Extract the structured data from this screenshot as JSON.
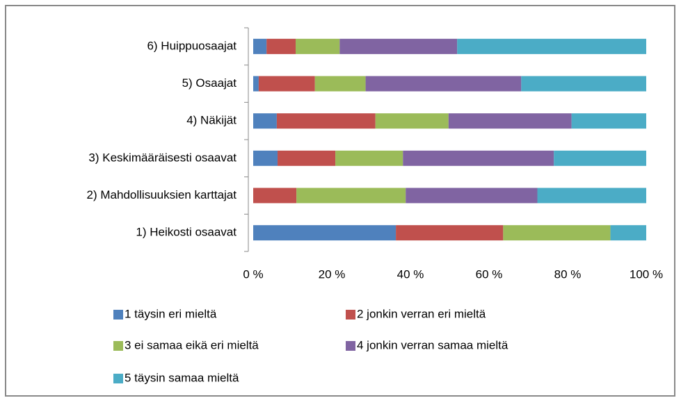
{
  "chart_data": {
    "type": "stacked-bar-horizontal",
    "categories": [
      "1) Heikosti osaavat",
      "2) Mahdollisuuksien karttajat",
      "3) Keskimääräisesti osaavat",
      "4) Näkijät",
      "5) Osaajat",
      "6) Huippuosaajat"
    ],
    "series": [
      {
        "name": "1 täysin eri mieltä",
        "color": "#4f81bd",
        "values": [
          36.3,
          0,
          6.2,
          6.0,
          1.4,
          3.4
        ]
      },
      {
        "name": "2 jonkin verran eri mieltä",
        "color": "#c0504d",
        "values": [
          27.3,
          11.0,
          14.7,
          25.1,
          14.3,
          7.4
        ]
      },
      {
        "name": "3 ei samaa  eikä eri mieltä",
        "color": "#9bbb59",
        "values": [
          27.3,
          27.8,
          17.2,
          18.6,
          12.9,
          11.2
        ]
      },
      {
        "name": "4 jonkin verran samaa  mieltä",
        "color": "#8064a2",
        "values": [
          0,
          33.5,
          38.4,
          31.3,
          39.6,
          29.9
        ]
      },
      {
        "name": "5 täysin samaa  mieltä",
        "color": "#4bacc6",
        "values": [
          9.1,
          27.7,
          23.5,
          19.0,
          31.8,
          48.1
        ]
      }
    ],
    "xlim": [
      0,
      100
    ],
    "xticks": [
      {
        "value": 0,
        "label": "0 %"
      },
      {
        "value": 20,
        "label": "20 %"
      },
      {
        "value": 40,
        "label": "40 %"
      },
      {
        "value": 60,
        "label": "60 %"
      },
      {
        "value": 80,
        "label": "80 %"
      },
      {
        "value": 100,
        "label": "100 %"
      }
    ],
    "legend": "bottom"
  }
}
